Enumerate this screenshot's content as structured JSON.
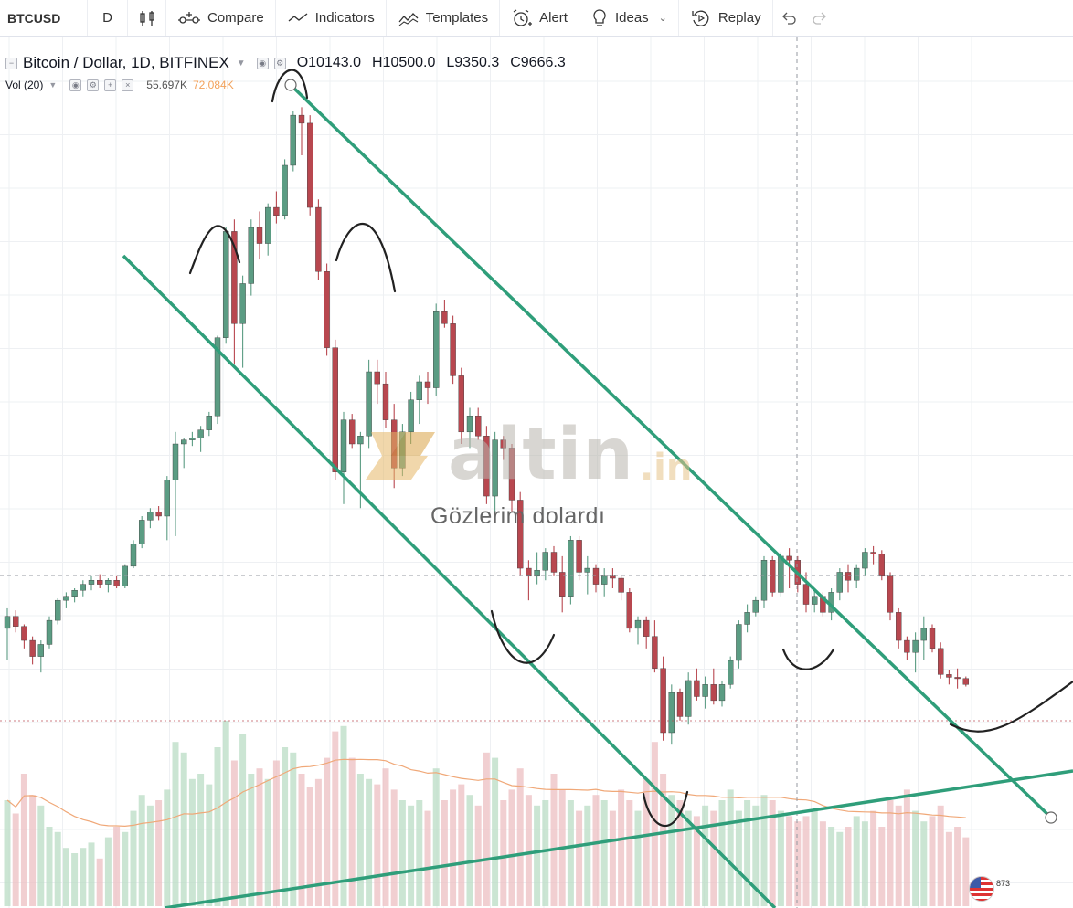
{
  "toolbar": {
    "symbol": "BTCUSD",
    "interval": "D",
    "compare_label": "Compare",
    "indicators_label": "Indicators",
    "templates_label": "Templates",
    "alert_label": "Alert",
    "ideas_label": "Ideas",
    "replay_label": "Replay"
  },
  "legend": {
    "title": "Bitcoin / Dollar, 1D, BITFINEX",
    "open": "O10143.0",
    "high": "H10500.0",
    "low": "L9350.3",
    "close": "C9666.3",
    "volume_label": "Vol (20)",
    "volume_value": "55.697K",
    "volume_ma_value": "72.084K"
  },
  "overlay": {
    "watermark_text": "altin",
    "watermark_tld": ".in",
    "subtitle": "Gözlerim dolardı",
    "badge_number": "873"
  },
  "colors": {
    "up": "#5b9c83",
    "down": "#b8474f",
    "trendline": "#2f9e7a",
    "volume_up": "#b9dcc4",
    "volume_down": "#ecbfc2",
    "volume_ma": "#f0a878",
    "grid": "#eef0f3"
  },
  "chart_data": {
    "type": "candlestick",
    "candles": [
      [
        0,
        9400,
        9900,
        8600,
        9700
      ],
      [
        1,
        9700,
        9850,
        9300,
        9450
      ],
      [
        2,
        9450,
        9500,
        8900,
        9100
      ],
      [
        3,
        9100,
        9200,
        8500,
        8700
      ],
      [
        4,
        8700,
        9100,
        8300,
        9000
      ],
      [
        5,
        9000,
        9700,
        8900,
        9600
      ],
      [
        6,
        9600,
        10150,
        9500,
        10100
      ],
      [
        7,
        10100,
        10300,
        9900,
        10200
      ],
      [
        8,
        10200,
        10400,
        10050,
        10350
      ],
      [
        9,
        10350,
        10600,
        10200,
        10500
      ],
      [
        10,
        10500,
        10700,
        10350,
        10600
      ],
      [
        11,
        10600,
        10750,
        10400,
        10500
      ],
      [
        12,
        10500,
        10650,
        10300,
        10600
      ],
      [
        13,
        10600,
        10700,
        10400,
        10450
      ],
      [
        14,
        10450,
        11000,
        10400,
        10950
      ],
      [
        15,
        10950,
        11600,
        10900,
        11500
      ],
      [
        16,
        11500,
        12200,
        11400,
        12100
      ],
      [
        17,
        12100,
        12400,
        11900,
        12300
      ],
      [
        18,
        12300,
        12450,
        12100,
        12200
      ],
      [
        19,
        12200,
        13200,
        11600,
        13100
      ],
      [
        20,
        13100,
        14300,
        11700,
        14000
      ],
      [
        21,
        14000,
        14150,
        13400,
        14100
      ],
      [
        22,
        14100,
        14300,
        13950,
        14150
      ],
      [
        23,
        14150,
        14450,
        13800,
        14350
      ],
      [
        24,
        14350,
        14800,
        14200,
        14700
      ],
      [
        25,
        14700,
        16700,
        14500,
        16650
      ],
      [
        26,
        16650,
        19400,
        16500,
        19300
      ],
      [
        27,
        19300,
        19600,
        16000,
        17000
      ],
      [
        28,
        17000,
        18200,
        15900,
        18000
      ],
      [
        29,
        18000,
        19600,
        17700,
        19400
      ],
      [
        30,
        19400,
        19800,
        18600,
        19000
      ],
      [
        31,
        19000,
        20000,
        18700,
        19900
      ],
      [
        32,
        19900,
        20300,
        19500,
        19700
      ],
      [
        33,
        19700,
        21100,
        19600,
        20950
      ],
      [
        34,
        20950,
        22300,
        20800,
        22200
      ],
      [
        35,
        22200,
        22400,
        21200,
        22000
      ],
      [
        36,
        22000,
        22200,
        19700,
        19900
      ],
      [
        37,
        19900,
        20100,
        18100,
        18300
      ],
      [
        38,
        18300,
        18500,
        16200,
        16400
      ],
      [
        39,
        16400,
        16600,
        13100,
        13300
      ],
      [
        40,
        13300,
        14800,
        12500,
        14600
      ],
      [
        41,
        14600,
        14750,
        13900,
        14000
      ],
      [
        42,
        14000,
        14300,
        12400,
        14200
      ],
      [
        43,
        14200,
        16100,
        13900,
        15800
      ],
      [
        44,
        15800,
        16100,
        15000,
        15500
      ],
      [
        45,
        15500,
        15800,
        14400,
        14600
      ],
      [
        46,
        14600,
        15000,
        12900,
        13400
      ],
      [
        47,
        13400,
        14500,
        13200,
        14300
      ],
      [
        48,
        14300,
        15300,
        14000,
        15100
      ],
      [
        49,
        15100,
        15700,
        14500,
        15550
      ],
      [
        50,
        15550,
        15800,
        15000,
        15400
      ],
      [
        51,
        15400,
        17500,
        15200,
        17300
      ],
      [
        52,
        17300,
        17600,
        16900,
        17000
      ],
      [
        53,
        17000,
        17200,
        15500,
        15700
      ],
      [
        54,
        15700,
        15900,
        14000,
        14300
      ],
      [
        55,
        14300,
        14900,
        13900,
        14700
      ],
      [
        56,
        14700,
        14900,
        14100,
        14200
      ],
      [
        57,
        14200,
        14450,
        12500,
        12700
      ],
      [
        58,
        12700,
        14300,
        12100,
        14100
      ],
      [
        59,
        14100,
        14200,
        13600,
        13900
      ],
      [
        60,
        13900,
        14000,
        12300,
        12600
      ],
      [
        61,
        12600,
        12800,
        10700,
        10900
      ],
      [
        62,
        10900,
        11100,
        10100,
        10700
      ],
      [
        63,
        10700,
        11300,
        10500,
        10850
      ],
      [
        64,
        10850,
        11400,
        10600,
        11300
      ],
      [
        65,
        11300,
        11450,
        10700,
        10800
      ],
      [
        66,
        10800,
        11200,
        9800,
        10200
      ],
      [
        67,
        10200,
        11700,
        10000,
        11600
      ],
      [
        68,
        11600,
        11700,
        10600,
        10800
      ],
      [
        69,
        10800,
        11200,
        10250,
        10900
      ],
      [
        70,
        10900,
        11000,
        10300,
        10500
      ],
      [
        71,
        10500,
        10900,
        10200,
        10700
      ],
      [
        72,
        10700,
        10900,
        10400,
        10650
      ],
      [
        73,
        10650,
        10700,
        10100,
        10300
      ],
      [
        74,
        10300,
        10400,
        9300,
        9400
      ],
      [
        75,
        9400,
        9700,
        9000,
        9600
      ],
      [
        76,
        9600,
        9700,
        8900,
        9200
      ],
      [
        77,
        9200,
        9600,
        8300,
        8400
      ],
      [
        78,
        8400,
        8700,
        6600,
        6800
      ],
      [
        79,
        6800,
        8000,
        6500,
        7800
      ],
      [
        80,
        7800,
        7900,
        7100,
        7200
      ],
      [
        81,
        7200,
        8300,
        7000,
        8100
      ],
      [
        82,
        8100,
        8400,
        7600,
        7700
      ],
      [
        83,
        7700,
        8200,
        7400,
        8000
      ],
      [
        84,
        8000,
        8400,
        7500,
        7600
      ],
      [
        85,
        7600,
        8100,
        7450,
        8000
      ],
      [
        86,
        8000,
        8700,
        7900,
        8600
      ],
      [
        87,
        8600,
        9600,
        8400,
        9500
      ],
      [
        88,
        9500,
        10000,
        9300,
        9800
      ],
      [
        89,
        9800,
        10200,
        9700,
        10100
      ],
      [
        90,
        10100,
        11200,
        9900,
        11100
      ],
      [
        91,
        11100,
        11200,
        10200,
        10300
      ],
      [
        92,
        10300,
        11300,
        10200,
        11200
      ],
      [
        93,
        11200,
        11400,
        10400,
        11100
      ],
      [
        94,
        11100,
        11200,
        10300,
        10500
      ],
      [
        95,
        10500,
        10800,
        9800,
        10000
      ],
      [
        96,
        10000,
        10400,
        9800,
        10200
      ],
      [
        97,
        10200,
        10300,
        9700,
        9800
      ],
      [
        98,
        9800,
        10400,
        9600,
        10300
      ],
      [
        99,
        10300,
        10900,
        10100,
        10800
      ],
      [
        100,
        10800,
        11000,
        10300,
        10600
      ],
      [
        101,
        10600,
        11000,
        10400,
        10900
      ],
      [
        102,
        10900,
        11400,
        10700,
        11300
      ],
      [
        103,
        11300,
        11450,
        11000,
        11250
      ],
      [
        104,
        11250,
        11350,
        10600,
        10700
      ],
      [
        105,
        10700,
        10800,
        9600,
        9800
      ],
      [
        106,
        9800,
        9900,
        8900,
        9100
      ],
      [
        107,
        9100,
        9200,
        8600,
        8800
      ],
      [
        108,
        8800,
        9300,
        8300,
        9100
      ],
      [
        109,
        9100,
        9700,
        8600,
        9400
      ],
      [
        110,
        9400,
        9500,
        8800,
        8900
      ],
      [
        111,
        8900,
        9050,
        8150,
        8250
      ],
      [
        112,
        8250,
        8350,
        8000,
        8180
      ],
      [
        113,
        8180,
        8400,
        7900,
        8150
      ],
      [
        114,
        8150,
        8200,
        7950,
        8000
      ]
    ],
    "volume": [
      40,
      35,
      50,
      42,
      38,
      30,
      28,
      22,
      20,
      22,
      24,
      18,
      26,
      30,
      28,
      36,
      42,
      38,
      40,
      44,
      62,
      58,
      48,
      50,
      46,
      60,
      70,
      55,
      65,
      50,
      52,
      48,
      55,
      60,
      58,
      50,
      45,
      48,
      56,
      66,
      68,
      56,
      50,
      48,
      46,
      52,
      44,
      40,
      38,
      40,
      36,
      52,
      40,
      44,
      46,
      42,
      38,
      58,
      56,
      40,
      44,
      52,
      42,
      38,
      40,
      50,
      44,
      40,
      36,
      38,
      42,
      40,
      36,
      44,
      40,
      36,
      48,
      62,
      50,
      42,
      40,
      36,
      34,
      38,
      36,
      40,
      44,
      36,
      40,
      38,
      42,
      40,
      36,
      34,
      32,
      34,
      36,
      32,
      30,
      28,
      30,
      34,
      32,
      36,
      30,
      40,
      38,
      44,
      36,
      32,
      34,
      38,
      28,
      30,
      26
    ],
    "xlabel": "",
    "ylabel": "",
    "ylim": [
      5000,
      23000
    ]
  }
}
